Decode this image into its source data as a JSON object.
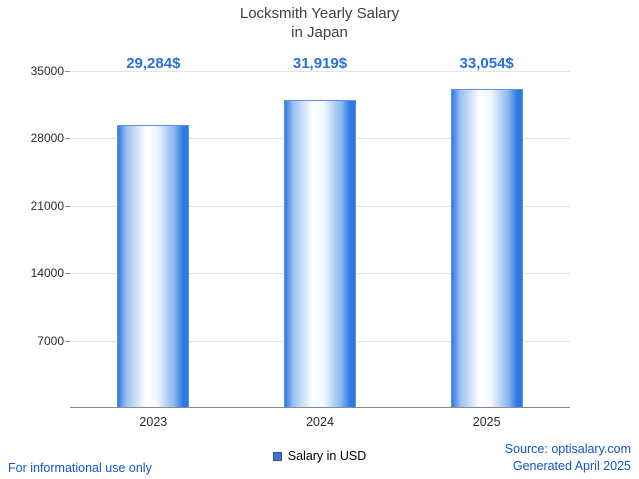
{
  "title": {
    "line1": "Locksmith Yearly Salary",
    "line2": "in Japan"
  },
  "chart_data": {
    "type": "bar",
    "title": "Locksmith Yearly Salary in Japan",
    "categories": [
      "2023",
      "2024",
      "2025"
    ],
    "values": [
      29284,
      31919,
      33054
    ],
    "value_labels": [
      "29,284$",
      "31,919$",
      "33,054$"
    ],
    "xlabel": "",
    "ylabel": "",
    "ylim": [
      0,
      35000
    ],
    "yticks": [
      7000,
      14000,
      21000,
      28000,
      35000
    ],
    "grid": true,
    "legend": [
      "Salary in USD"
    ],
    "legend_position": "bottom",
    "bar_color": "#2f79e6"
  },
  "legend": {
    "label": "Salary in USD",
    "swatch_color": "#4472c4"
  },
  "footer": {
    "left": "For informational use only",
    "source": "Source: optisalary.com",
    "generated": "Generated April 2025"
  },
  "colors": {
    "value_label_blue": "#2a72d8",
    "link_blue": "#1155cc",
    "title_gray": "#3f3f3f"
  }
}
